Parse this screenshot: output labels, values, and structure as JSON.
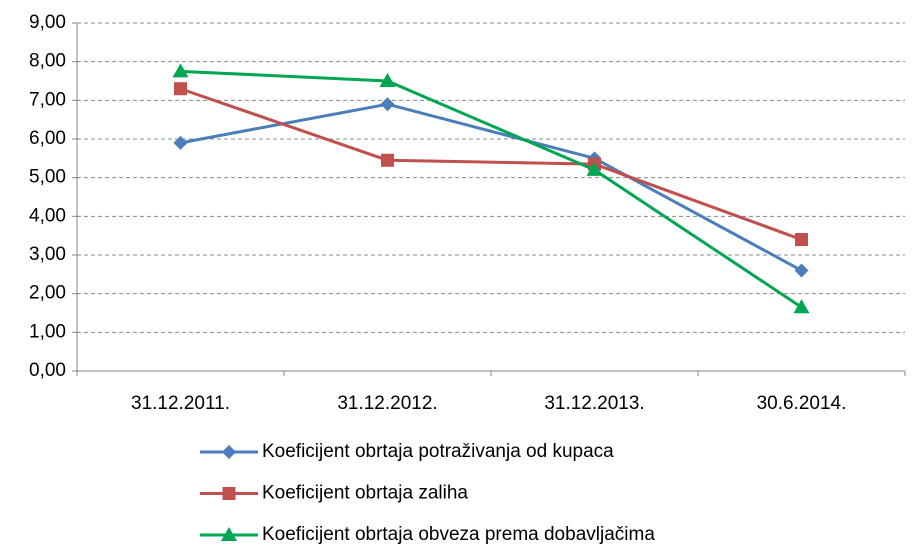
{
  "chart_data": {
    "type": "line",
    "categories": [
      "31.12.2011.",
      "31.12.2012.",
      "31.12.2013.",
      "30.6.2014."
    ],
    "series": [
      {
        "name": "Koeficijent obrtaja potraživanja od kupaca",
        "color": "#4a7ebb",
        "marker": "diamond",
        "values": [
          5.9,
          6.9,
          5.5,
          2.6
        ]
      },
      {
        "name": "Koeficijent obrtaja zaliha",
        "color": "#c0504d",
        "marker": "square",
        "values": [
          7.3,
          5.45,
          5.35,
          3.4
        ]
      },
      {
        "name": "Koeficijent obrtaja obveza prema dobavljačima",
        "color": "#00a651",
        "marker": "triangle",
        "values": [
          7.75,
          7.5,
          5.2,
          1.65
        ]
      }
    ],
    "ylim": [
      0,
      9
    ],
    "yticks": [
      {
        "value": 0,
        "label": "0,00"
      },
      {
        "value": 1,
        "label": "1,00"
      },
      {
        "value": 2,
        "label": "2,00"
      },
      {
        "value": 3,
        "label": "3,00"
      },
      {
        "value": 4,
        "label": "4,00"
      },
      {
        "value": 5,
        "label": "5,00"
      },
      {
        "value": 6,
        "label": "6,00"
      },
      {
        "value": 7,
        "label": "7,00"
      },
      {
        "value": 8,
        "label": "8,00"
      },
      {
        "value": 9,
        "label": "9,00"
      }
    ],
    "grid": true,
    "legend": "bottom"
  }
}
